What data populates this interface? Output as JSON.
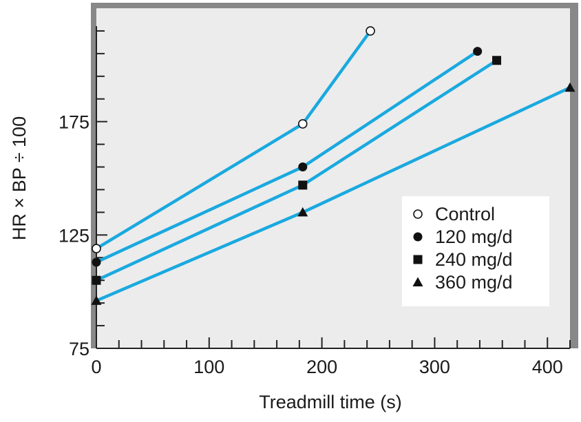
{
  "chart_data": {
    "type": "line",
    "title": "",
    "xlabel": "Treadmill time (s)",
    "ylabel": "HR × BP ÷ 100",
    "xlim": [
      0,
      420
    ],
    "ylim": [
      75,
      225
    ],
    "x_ticks": [
      0,
      100,
      200,
      300,
      400
    ],
    "y_ticks": [
      75,
      125,
      175
    ],
    "x_minor_step": 20,
    "y_minor_step": 10,
    "grid": false,
    "legend_position": "lower-right",
    "line_color": "#1aa9df",
    "plot_background": "#ececec",
    "series": [
      {
        "name": "Control",
        "marker": "open-circle",
        "x": [
          0,
          183,
          243
        ],
        "y": [
          119,
          174,
          215
        ]
      },
      {
        "name": "120 mg/d",
        "marker": "filled-circle",
        "x": [
          0,
          183,
          338
        ],
        "y": [
          113,
          155,
          206
        ]
      },
      {
        "name": "240 mg/d",
        "marker": "filled-square",
        "x": [
          0,
          183,
          355
        ],
        "y": [
          105,
          147,
          202
        ]
      },
      {
        "name": "360 mg/d",
        "marker": "filled-triangle",
        "x": [
          0,
          183,
          420
        ],
        "y": [
          96,
          135,
          190
        ]
      }
    ]
  }
}
